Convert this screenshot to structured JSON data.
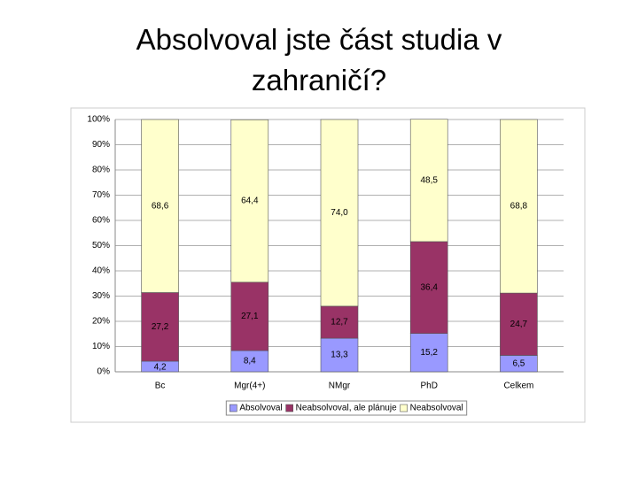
{
  "chart_data": {
    "type": "stacked_bar",
    "title": "Absolvoval jste část studia v zahraničí?",
    "categories": [
      "Bc",
      "Mgr(4+)",
      "NMgr",
      "PhD",
      "Celkem"
    ],
    "series": [
      {
        "name": "Absolvoval",
        "color": "#9999ff",
        "values": [
          4.2,
          8.4,
          13.3,
          15.2,
          6.5
        ],
        "value_labels": [
          "4,2",
          "8,4",
          "13,3",
          "15,2",
          "6,5"
        ]
      },
      {
        "name": "Neabsolvoval, ale plánuje",
        "color": "#993366",
        "values": [
          27.2,
          27.1,
          12.7,
          36.4,
          24.7
        ],
        "value_labels": [
          "27,2",
          "27,1",
          "12,7",
          "36,4",
          "24,7"
        ]
      },
      {
        "name": "Neabsolvoval",
        "color": "#ffffcc",
        "values": [
          68.6,
          64.4,
          74.0,
          48.5,
          68.8
        ],
        "value_labels": [
          "68,6",
          "64,4",
          "74,0",
          "48,5",
          "68,8"
        ]
      }
    ],
    "ylim": [
      0,
      100
    ],
    "yticks": [
      {
        "value": 0,
        "label": "0%"
      },
      {
        "value": 10,
        "label": "10%"
      },
      {
        "value": 20,
        "label": "20%"
      },
      {
        "value": 30,
        "label": "30%"
      },
      {
        "value": 40,
        "label": "40%"
      },
      {
        "value": 50,
        "label": "50%"
      },
      {
        "value": 60,
        "label": "60%"
      },
      {
        "value": 70,
        "label": "70%"
      },
      {
        "value": 80,
        "label": "80%"
      },
      {
        "value": 90,
        "label": "90%"
      },
      {
        "value": 100,
        "label": "100%"
      }
    ],
    "grid": true,
    "legend": "bottom"
  }
}
